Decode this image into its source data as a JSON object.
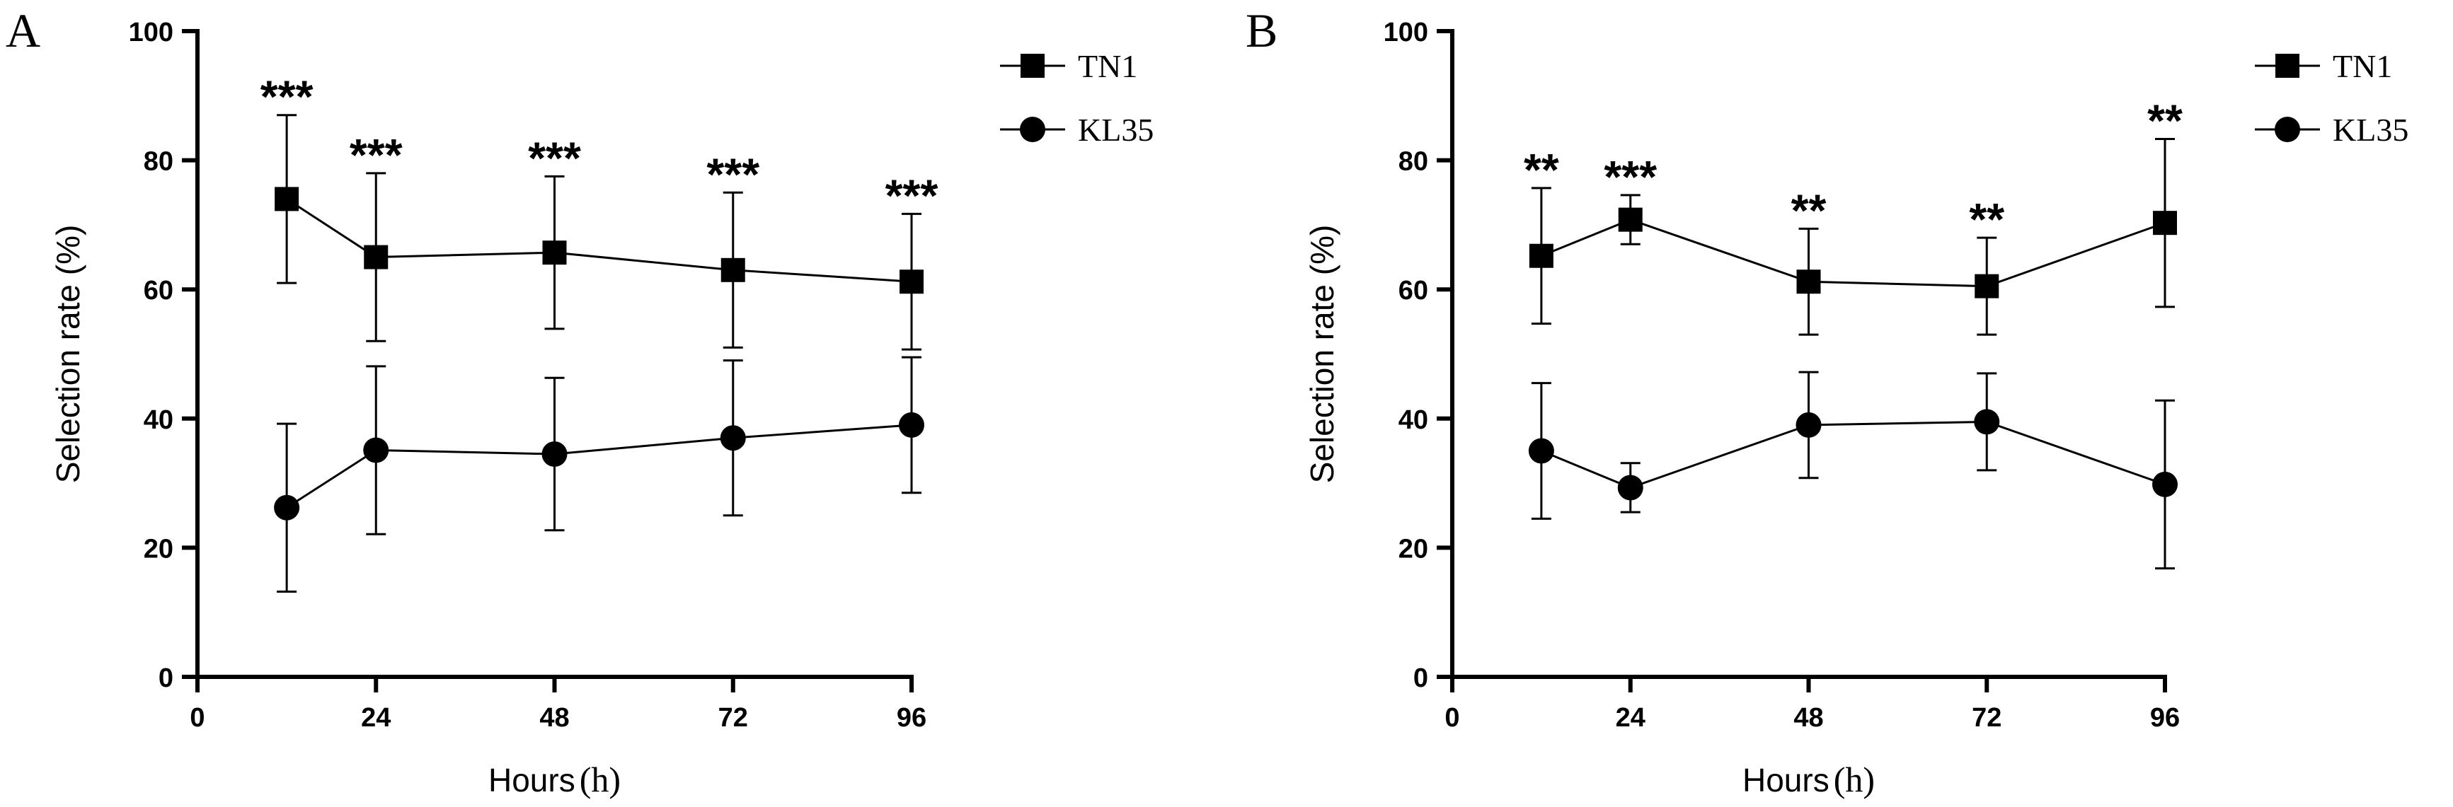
{
  "chart_data": [
    {
      "panel": "A",
      "type": "line",
      "x": [
        12,
        24,
        48,
        72,
        96
      ],
      "xticks": [
        0,
        24,
        48,
        72,
        96
      ],
      "yticks": [
        0,
        20,
        40,
        60,
        80,
        100
      ],
      "xlim": [
        0,
        96
      ],
      "ylim": [
        0,
        100
      ],
      "xlabel": "Hours",
      "xlabel_unit": "(h)",
      "ylabel": "Selection rate (%)",
      "legend_position": "top-right",
      "series": [
        {
          "name": "TN1",
          "marker": "square",
          "values": [
            74,
            65,
            65.7,
            63,
            61.2
          ],
          "errors": [
            13,
            13,
            11.8,
            12,
            10.5
          ]
        },
        {
          "name": "KL35",
          "marker": "circle",
          "values": [
            26.2,
            35.1,
            34.5,
            37,
            39
          ],
          "errors": [
            13,
            13,
            11.8,
            12,
            10.5
          ]
        }
      ],
      "significance": [
        "***",
        "***",
        "***",
        "***",
        "***"
      ]
    },
    {
      "panel": "B",
      "type": "line",
      "x": [
        12,
        24,
        48,
        72,
        96
      ],
      "xticks": [
        0,
        24,
        48,
        72,
        96
      ],
      "yticks": [
        0,
        20,
        40,
        60,
        80,
        100
      ],
      "xlim": [
        0,
        96
      ],
      "ylim": [
        0,
        100
      ],
      "xlabel": "Hours",
      "xlabel_unit": "(h)",
      "ylabel": "Selection rate (%)",
      "legend_position": "top-right",
      "series": [
        {
          "name": "TN1",
          "marker": "square",
          "values": [
            65.2,
            70.8,
            61.2,
            60.5,
            70.3
          ],
          "errors": [
            10.5,
            3.8,
            8.2,
            7.5,
            13
          ]
        },
        {
          "name": "KL35",
          "marker": "circle",
          "values": [
            35,
            29.3,
            39,
            39.5,
            29.8
          ],
          "errors": [
            10.5,
            3.8,
            8.2,
            7.5,
            13
          ]
        }
      ],
      "significance": [
        "**",
        "***",
        "**",
        "**",
        "**"
      ]
    }
  ]
}
